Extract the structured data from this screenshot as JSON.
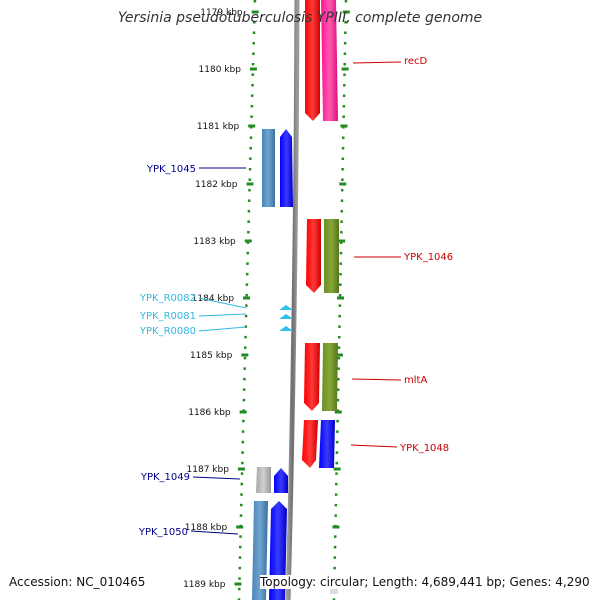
{
  "title": "Yersinia pseudotuberculosis YPIII, complete genome",
  "accession": "Accession: NC_010465",
  "topology": "Topology: circular; Length: 4,689,441 bp; Genes: 4,290",
  "ticks": [
    "1179 kbp",
    "1180 kbp",
    "1181 kbp",
    "1182 kbp",
    "1183 kbp",
    "1184 kbp",
    "1185 kbp",
    "1186 kbp",
    "1187 kbp",
    "1188 kbp",
    "1189 kbp"
  ],
  "colors": {
    "forward_cds": "#0000ff",
    "forward_gene": "#4682b4",
    "reverse_cds": "#ff0000",
    "reverse_gene_recD": "#ff1493",
    "reverse_gene": "#6b8e23",
    "rna": "#30c0f0",
    "grey_gene": "#b4b4b4",
    "backbone": "#808080",
    "tick_green": "#228b22"
  },
  "labels": [
    {
      "text": "recD",
      "side": "right",
      "color": "#cc0000"
    },
    {
      "text": "YPK_1045",
      "side": "left",
      "color": "#00008b"
    },
    {
      "text": "YPK_1046",
      "side": "right",
      "color": "#cc0000"
    },
    {
      "text": "YPK_R0082",
      "side": "left",
      "color": "#30b8e0"
    },
    {
      "text": "YPK_R0081",
      "side": "left",
      "color": "#30b8e0"
    },
    {
      "text": "YPK_R0080",
      "side": "left",
      "color": "#30b8e0"
    },
    {
      "text": "mltA",
      "side": "right",
      "color": "#cc0000"
    },
    {
      "text": "YPK_1048",
      "side": "right",
      "color": "#cc0000"
    },
    {
      "text": "YPK_1049",
      "side": "left",
      "color": "#00008b"
    },
    {
      "text": "YPK_1050",
      "side": "left",
      "color": "#00008b"
    }
  ]
}
